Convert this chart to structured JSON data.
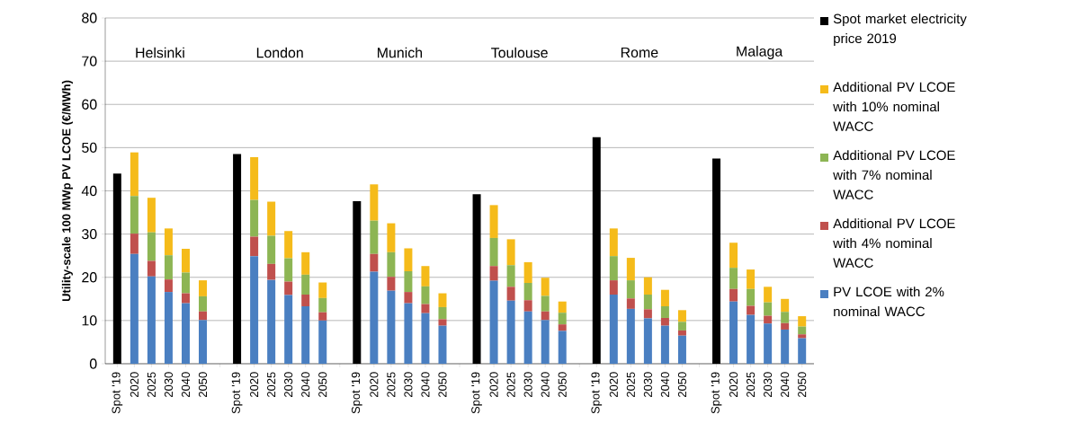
{
  "chart_data": {
    "type": "bar",
    "stacked": true,
    "ylabel": "Utility-scale 100 MWp PV LCOE (€/MWh)",
    "categories": [
      "Spot '19",
      "2020",
      "2025",
      "2030",
      "2040",
      "2050",
      null,
      "Spot '19",
      "2020",
      "2025",
      "2030",
      "2040",
      "2050",
      null,
      "Spot '19",
      "2020",
      "2025",
      "2030",
      "2040",
      "2050",
      null,
      "Spot '19",
      "2020",
      "2025",
      "2030",
      "2040",
      "2050",
      null,
      "Spot '19",
      "2020",
      "2025",
      "2030",
      "2040",
      "2050",
      null,
      "Spot '19",
      "2020",
      "2025",
      "2030",
      "2040",
      "2050"
    ],
    "annotations": [
      "Helsinki",
      "London",
      "Munich",
      "Toulouse",
      "Rome",
      "Malaga"
    ],
    "ylim": [
      0,
      80
    ],
    "yticks": [
      0,
      10,
      20,
      30,
      40,
      50,
      60,
      70,
      80
    ],
    "grid": "y",
    "legend": "right",
    "series": [
      {
        "name": "PV LCOE with 2% nominal WACC",
        "color": "#4a7fc1",
        "values": [
          null,
          25.4,
          20.2,
          16.6,
          14.0,
          10.1,
          null,
          null,
          24.9,
          19.4,
          15.9,
          13.3,
          10.0,
          null,
          null,
          21.3,
          16.9,
          14.0,
          11.7,
          8.8,
          null,
          null,
          19.2,
          14.6,
          12.1,
          10.1,
          7.6,
          null,
          null,
          16.0,
          12.7,
          10.5,
          8.8,
          6.5,
          null,
          null,
          14.4,
          11.3,
          9.3,
          7.9,
          5.9
        ]
      },
      {
        "name": "Additional PV LCOE with 4% nominal WACC",
        "color": "#c0504d",
        "values": [
          null,
          4.7,
          3.6,
          2.9,
          2.3,
          2.0,
          null,
          null,
          4.5,
          3.7,
          3.1,
          2.7,
          1.9,
          null,
          null,
          4.1,
          3.2,
          2.6,
          2.1,
          1.5,
          null,
          null,
          3.4,
          3.2,
          2.6,
          2.0,
          1.5,
          null,
          null,
          3.3,
          2.4,
          2.1,
          1.8,
          1.2,
          null,
          null,
          2.9,
          2.1,
          1.8,
          1.5,
          0.9
        ]
      },
      {
        "name": "Additional PV LCOE with 7% nominal WACC",
        "color": "#8db554",
        "values": [
          null,
          8.7,
          6.6,
          5.6,
          4.8,
          3.5,
          null,
          null,
          8.5,
          6.5,
          5.4,
          4.6,
          3.3,
          null,
          null,
          7.7,
          5.7,
          4.8,
          4.1,
          2.8,
          null,
          null,
          6.5,
          5.0,
          4.0,
          3.6,
          2.7,
          null,
          null,
          5.6,
          4.2,
          3.4,
          2.7,
          2.0,
          null,
          null,
          4.9,
          3.9,
          3.1,
          2.6,
          1.8
        ]
      },
      {
        "name": "Additional PV LCOE with 10% nominal WACC",
        "color": "#f5bb1a",
        "values": [
          null,
          10.1,
          8.0,
          6.2,
          5.5,
          3.7,
          null,
          null,
          9.9,
          7.9,
          6.3,
          5.2,
          3.6,
          null,
          null,
          8.4,
          6.7,
          5.3,
          4.7,
          3.2,
          null,
          null,
          7.6,
          6.0,
          4.8,
          4.2,
          2.6,
          null,
          null,
          6.4,
          5.2,
          4.0,
          3.8,
          2.7,
          null,
          null,
          5.8,
          4.5,
          3.6,
          3.0,
          2.4
        ]
      },
      {
        "name": "Spot market electricity price 2019",
        "color": "#000000",
        "values": [
          44.0,
          null,
          null,
          null,
          null,
          null,
          null,
          48.5,
          null,
          null,
          null,
          null,
          null,
          null,
          37.6,
          null,
          null,
          null,
          null,
          null,
          null,
          39.2,
          null,
          null,
          null,
          null,
          null,
          null,
          52.4,
          null,
          null,
          null,
          null,
          null,
          null,
          47.5,
          null,
          null,
          null,
          null,
          null
        ]
      }
    ]
  }
}
